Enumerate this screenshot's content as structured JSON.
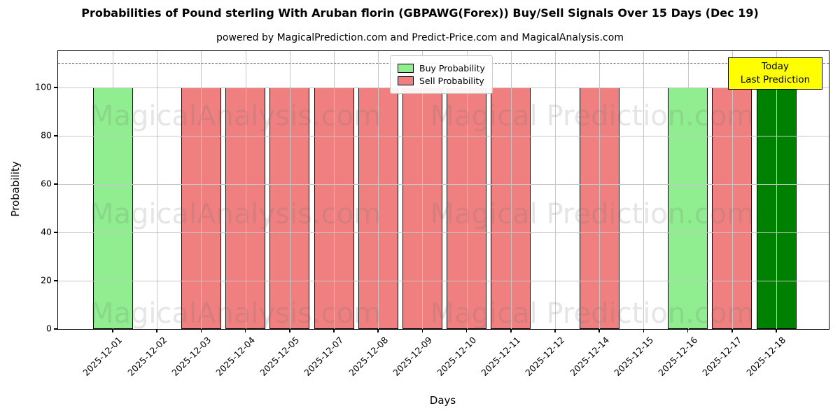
{
  "title": "Probabilities of Pound sterling With Aruban florin (GBPAWG(Forex)) Buy/Sell Signals Over 15 Days (Dec 19)",
  "subtitle": "powered by MagicalPrediction.com and Predict-Price.com and MagicalAnalysis.com",
  "axes": {
    "ylabel": "Probability",
    "xlabel": "Days",
    "yticks": [
      0,
      20,
      40,
      60,
      80,
      100
    ],
    "ylim": [
      0,
      115
    ],
    "dashed_line_y": 110,
    "grid": "on"
  },
  "legend": [
    {
      "label": "Buy Probability",
      "color": "#90EE90"
    },
    {
      "label": "Sell Probability",
      "color": "#F08080"
    }
  ],
  "annotation_box": {
    "lines": [
      "Today",
      "Last Prediction"
    ],
    "bg_color": "#FFFF00"
  },
  "watermarks": {
    "left_text": "MagicalAnalysis.com",
    "right_text": "Magical Prediction.com"
  },
  "colors": {
    "buy": "#90EE90",
    "sell": "#F08080",
    "last_prediction": "#008000",
    "dashed_line": "#7f7f7f",
    "grid": "#c6c6c6"
  },
  "chart_data": {
    "type": "bar",
    "title": "Probabilities of Pound sterling With Aruban florin (GBPAWG(Forex)) Buy/Sell Signals Over 15 Days (Dec 19)",
    "xlabel": "Days",
    "ylabel": "Probability",
    "ylim": [
      0,
      115
    ],
    "grid": true,
    "legend_position": "upper center",
    "dashed_reference_line_y": 110,
    "categories": [
      "2025-12-01",
      "2025-12-02",
      "2025-12-03",
      "2025-12-04",
      "2025-12-05",
      "2025-12-07",
      "2025-12-08",
      "2025-12-09",
      "2025-12-10",
      "2025-12-11",
      "2025-12-12",
      "2025-12-14",
      "2025-12-15",
      "2025-12-16",
      "2025-12-17",
      "2025-12-18"
    ],
    "series": [
      {
        "name": "Buy Probability",
        "color": "#90EE90",
        "values": [
          100,
          0,
          0,
          0,
          0,
          0,
          0,
          0,
          0,
          0,
          0,
          0,
          0,
          100,
          0,
          0
        ]
      },
      {
        "name": "Sell Probability",
        "color": "#F08080",
        "values": [
          0,
          0,
          100,
          100,
          100,
          100,
          100,
          100,
          100,
          100,
          0,
          100,
          0,
          0,
          100,
          0
        ]
      },
      {
        "name": "Last Prediction (Today)",
        "color": "#008000",
        "values": [
          0,
          0,
          0,
          0,
          0,
          0,
          0,
          0,
          0,
          0,
          0,
          0,
          0,
          0,
          0,
          100
        ]
      }
    ]
  }
}
